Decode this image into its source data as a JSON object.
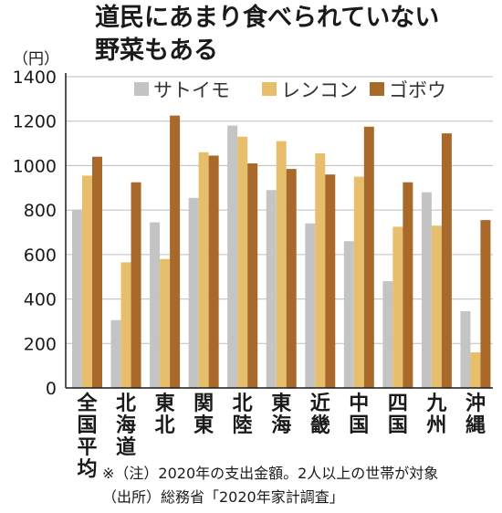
{
  "title_lines": [
    "道民にあまり食べられていない",
    "野菜もある"
  ],
  "colors": {
    "satoimo": "#c4c4c4",
    "renkon": "#e7be6c",
    "gobou": "#a8692a",
    "axis": "#1a1a1a",
    "grid": "#bdbdbd"
  },
  "chart_data": {
    "type": "bar",
    "unit_label": "（円）",
    "categories": [
      "全国平均",
      "北海道",
      "東北",
      "関東",
      "北陸",
      "東海",
      "近畿",
      "中国",
      "四国",
      "九州",
      "沖縄"
    ],
    "series": [
      {
        "name": "サトイモ",
        "values": [
          800,
          305,
          745,
          855,
          1180,
          890,
          740,
          660,
          480,
          880,
          345
        ]
      },
      {
        "name": "レンコン",
        "values": [
          955,
          565,
          580,
          1060,
          1130,
          1110,
          1055,
          950,
          725,
          730,
          160
        ]
      },
      {
        "name": "ゴボウ",
        "values": [
          1040,
          925,
          1225,
          1045,
          1010,
          985,
          960,
          1175,
          925,
          1145,
          755
        ]
      }
    ],
    "yticks": [
      0,
      200,
      400,
      600,
      800,
      1000,
      1200,
      1400
    ],
    "ylim": [
      0,
      1400
    ],
    "legend_position": "top-right",
    "grid": true
  },
  "notes": [
    "※（注）2020年の支出金額。2人以上の世帯が対象",
    "（出所）総務省「2020年家計調査」"
  ]
}
